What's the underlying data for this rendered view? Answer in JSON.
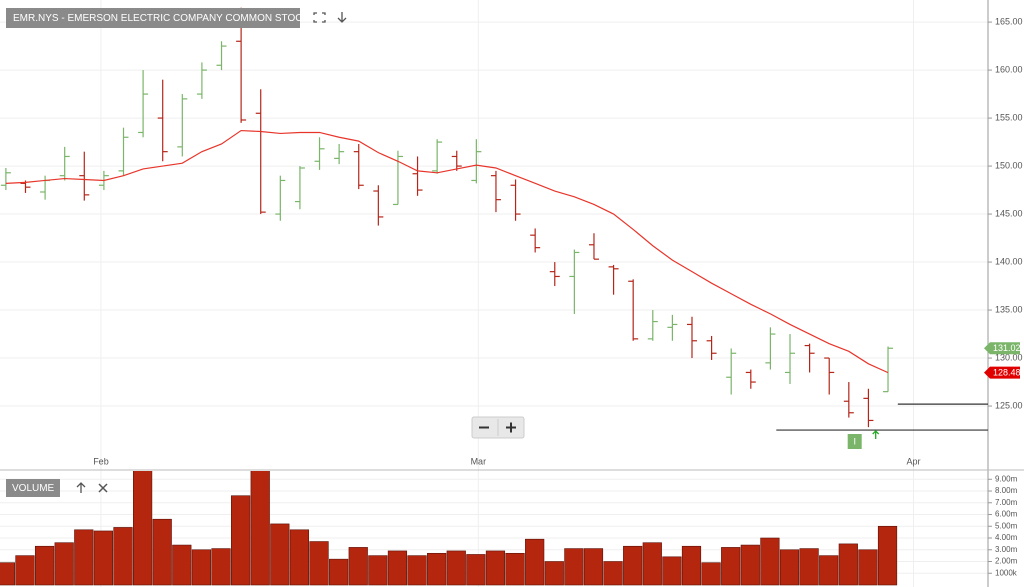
{
  "chart_data": [
    {
      "type": "ohlc",
      "title": "EMR.NYS - EMERSON ELECTRIC COMPANY COMMON STOCK",
      "open": [
        148,
        148.2,
        147.3,
        149,
        149,
        148,
        149.5,
        153.5,
        155,
        152,
        157.5,
        160.5,
        163,
        155.5,
        145,
        146.3,
        150.5,
        150.8,
        151.5,
        147.4,
        146,
        149.2,
        149.5,
        151,
        148.5,
        149,
        148,
        142.8,
        139,
        138.5,
        141.8,
        139.5,
        138,
        132,
        133.2,
        133.5,
        131.8,
        128,
        128.5,
        129.5,
        128.5,
        131.3,
        130,
        125.5,
        125.8,
        126.5
      ],
      "high": [
        149.8,
        148.5,
        149,
        152,
        151.5,
        149.5,
        154,
        160,
        159,
        157.5,
        160.8,
        163,
        166.5,
        158,
        149,
        150,
        153,
        152.3,
        152.3,
        148,
        151.6,
        151,
        152.8,
        151.6,
        152.8,
        149.5,
        148.6,
        143.5,
        140,
        141.3,
        143,
        139.7,
        138.2,
        135,
        134.5,
        134.3,
        132.3,
        131,
        128.8,
        133.2,
        132.5,
        131.5,
        130,
        127.5,
        126.8,
        131.2
      ],
      "low": [
        147.5,
        147.2,
        146.5,
        148.5,
        146.4,
        147.5,
        149,
        153,
        150.5,
        151,
        157,
        160,
        154.5,
        145,
        144.3,
        145.5,
        149.6,
        150.2,
        147.6,
        143.8,
        146,
        146.9,
        149.2,
        149.5,
        148.2,
        145.2,
        144.3,
        141,
        137.5,
        134.6,
        140.3,
        136.6,
        131.8,
        131.8,
        131.8,
        130,
        129.8,
        126.2,
        126.8,
        128.8,
        127.3,
        128.5,
        126.2,
        123.8,
        122.8,
        126.5
      ],
      "close": [
        149.3,
        147.8,
        148.5,
        151,
        147,
        149,
        153,
        157.5,
        151.5,
        157,
        160,
        162.5,
        154.8,
        145.2,
        148.5,
        149.8,
        151.8,
        151.5,
        148,
        144.7,
        151,
        147.5,
        152.5,
        150,
        151.5,
        146.5,
        145,
        141.5,
        138.5,
        141,
        140.3,
        139.3,
        132,
        133.8,
        133.5,
        131.8,
        130.5,
        130.5,
        127.5,
        132.5,
        130.5,
        130.5,
        128.5,
        124.3,
        123.5,
        131.02
      ],
      "up_color": "#7ab56a",
      "down_color": "#b5261a",
      "moving_average": {
        "color": "#e8352b",
        "values": [
          148.2,
          148.3,
          148.5,
          148.7,
          148.6,
          148.5,
          149,
          149.7,
          150,
          150.3,
          151.5,
          152.3,
          153.7,
          153.6,
          153.4,
          153.5,
          153.5,
          153,
          152.6,
          151.4,
          150.5,
          149.5,
          149.3,
          149.7,
          150.1,
          149.8,
          149,
          148.2,
          147.4,
          146.8,
          146,
          145,
          143.4,
          141.7,
          140.2,
          139,
          137.8,
          136.7,
          135.6,
          134.6,
          133.5,
          132.5,
          131.5,
          130.7,
          129.4,
          128.48
        ]
      },
      "markers": [
        {
          "value": 131.02,
          "label": "131.02",
          "color": "#7ab56a"
        },
        {
          "value": 128.48,
          "label": "128.48",
          "color": "#e00000"
        }
      ],
      "levels": [
        {
          "start": 45.5,
          "value": 125.2
        },
        {
          "start": 39.3,
          "value": 122.5
        }
      ],
      "event": {
        "index": 43.3,
        "label": "I"
      },
      "xlim": [
        -0.3,
        50.1
      ],
      "ylim": [
        119.9,
        167.3
      ],
      "xticks": [
        {
          "value": 4.85,
          "label": "Feb"
        },
        {
          "value": 24.1,
          "label": "Mar"
        },
        {
          "value": 46.3,
          "label": "Apr"
        }
      ],
      "yticks": [
        {
          "value": 125,
          "label": "125.00"
        },
        {
          "value": 130,
          "label": "130.00"
        },
        {
          "value": 135,
          "label": "135.00"
        },
        {
          "value": 140,
          "label": "140.00"
        },
        {
          "value": 145,
          "label": "145.00"
        },
        {
          "value": 150,
          "label": "150.00"
        },
        {
          "value": 155,
          "label": "155.00"
        },
        {
          "value": 160,
          "label": "160.00"
        },
        {
          "value": 165,
          "label": "165.00"
        }
      ],
      "grid": true
    },
    {
      "type": "bar",
      "title": "VOLUME",
      "color": "#b5260f",
      "values": [
        1900000,
        2500000,
        3300000,
        3600000,
        4700000,
        4600000,
        4900000,
        9800000,
        5600000,
        3400000,
        3000000,
        3100000,
        7600000,
        10000000,
        5200000,
        4700000,
        3700000,
        2200000,
        3200000,
        2500000,
        2900000,
        2500000,
        2700000,
        2900000,
        2600000,
        2900000,
        2700000,
        3900000,
        2000000,
        3100000,
        3100000,
        2000000,
        3300000,
        3600000,
        2400000,
        3300000,
        1900000,
        3200000,
        3400000,
        4000000,
        3000000,
        3100000,
        2500000,
        3500000,
        3000000,
        5000000
      ],
      "ylim": [
        0,
        10130000
      ],
      "yticks": [
        {
          "value": 1000000,
          "label": "1000k"
        },
        {
          "value": 2000000,
          "label": "2.00m"
        },
        {
          "value": 3000000,
          "label": "3.00m"
        },
        {
          "value": 4000000,
          "label": "4.00m"
        },
        {
          "value": 5000000,
          "label": "5.00m"
        },
        {
          "value": 6000000,
          "label": "6.00m"
        },
        {
          "value": 7000000,
          "label": "7.00m"
        },
        {
          "value": 8000000,
          "label": "8.00m"
        },
        {
          "value": 9000000,
          "label": "9.00m"
        }
      ],
      "grid": true
    }
  ]
}
